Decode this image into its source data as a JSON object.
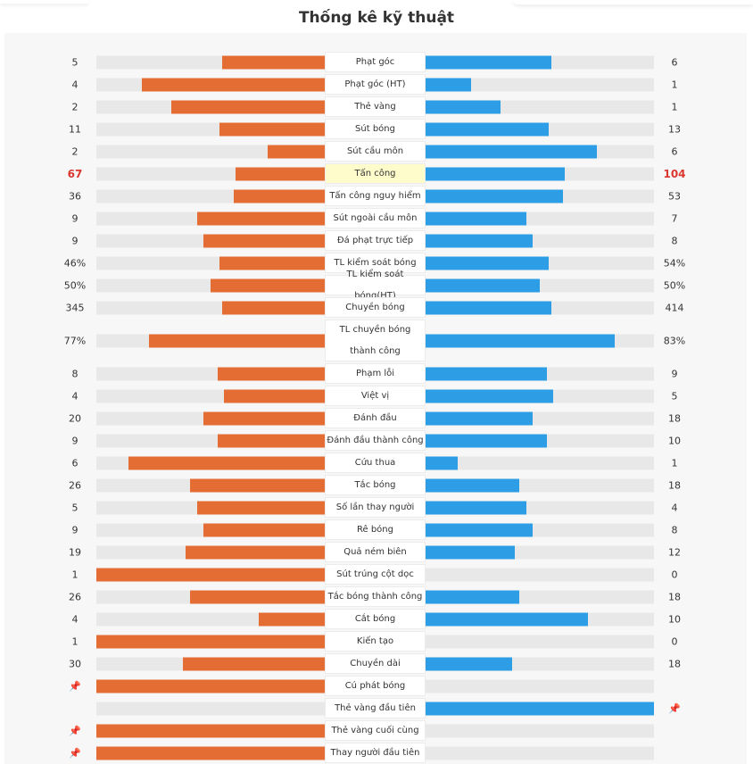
{
  "title": "Thống kê kỹ thuật",
  "colors": {
    "home": "#e36d33",
    "away": "#2d9de6",
    "highlight": "#d9372f",
    "highlight_bg": "#fffccc"
  },
  "chart_data": {
    "type": "bar",
    "title": "Thống kê kỹ thuật",
    "series": [
      {
        "name": "home"
      },
      {
        "name": "away"
      }
    ],
    "rows": [
      {
        "label": "Phạt góc",
        "home": "5",
        "away": "6",
        "home_ratio": 0.45,
        "away_ratio": 0.55
      },
      {
        "label": "Phạt góc (HT)",
        "home": "4",
        "away": "1",
        "home_ratio": 0.8,
        "away_ratio": 0.2
      },
      {
        "label": "Thẻ vàng",
        "home": "2",
        "away": "1",
        "home_ratio": 0.67,
        "away_ratio": 0.33
      },
      {
        "label": "Sút bóng",
        "home": "11",
        "away": "13",
        "home_ratio": 0.46,
        "away_ratio": 0.54
      },
      {
        "label": "Sút cầu môn",
        "home": "2",
        "away": "6",
        "home_ratio": 0.25,
        "away_ratio": 0.75
      },
      {
        "label": "Tấn công",
        "home": "67",
        "away": "104",
        "home_ratio": 0.39,
        "away_ratio": 0.61,
        "highlight": true
      },
      {
        "label": "Tấn công nguy hiểm",
        "home": "36",
        "away": "53",
        "home_ratio": 0.4,
        "away_ratio": 0.6
      },
      {
        "label": "Sút ngoài cầu môn",
        "home": "9",
        "away": "7",
        "home_ratio": 0.56,
        "away_ratio": 0.44
      },
      {
        "label": "Đá phạt trực tiếp",
        "home": "9",
        "away": "8",
        "home_ratio": 0.53,
        "away_ratio": 0.47
      },
      {
        "label": "TL kiểm soát bóng",
        "home": "46%",
        "away": "54%",
        "home_ratio": 0.46,
        "away_ratio": 0.54
      },
      {
        "label": "TL kiểm soát bóng(HT)",
        "home": "50%",
        "away": "50%",
        "home_ratio": 0.5,
        "away_ratio": 0.5
      },
      {
        "label": "Chuyền bóng",
        "home": "345",
        "away": "414",
        "home_ratio": 0.45,
        "away_ratio": 0.55
      },
      {
        "label": "TL chuyền bóng thành công",
        "home": "77%",
        "away": "83%",
        "home_ratio": 0.77,
        "away_ratio": 0.83,
        "tall": true
      },
      {
        "label": "Phạm lỗi",
        "home": "8",
        "away": "9",
        "home_ratio": 0.47,
        "away_ratio": 0.53
      },
      {
        "label": "Việt vị",
        "home": "4",
        "away": "5",
        "home_ratio": 0.44,
        "away_ratio": 0.56
      },
      {
        "label": "Đánh đầu",
        "home": "20",
        "away": "18",
        "home_ratio": 0.53,
        "away_ratio": 0.47
      },
      {
        "label": "Đánh đầu thành công",
        "home": "9",
        "away": "10",
        "home_ratio": 0.47,
        "away_ratio": 0.53
      },
      {
        "label": "Cứu thua",
        "home": "6",
        "away": "1",
        "home_ratio": 0.86,
        "away_ratio": 0.14
      },
      {
        "label": "Tắc bóng",
        "home": "26",
        "away": "18",
        "home_ratio": 0.59,
        "away_ratio": 0.41
      },
      {
        "label": "Số lần thay người",
        "home": "5",
        "away": "4",
        "home_ratio": 0.56,
        "away_ratio": 0.44
      },
      {
        "label": "Rê bóng",
        "home": "9",
        "away": "8",
        "home_ratio": 0.53,
        "away_ratio": 0.47
      },
      {
        "label": "Quả ném biên",
        "home": "19",
        "away": "12",
        "home_ratio": 0.61,
        "away_ratio": 0.39
      },
      {
        "label": "Sút trúng cột dọc",
        "home": "1",
        "away": "0",
        "home_ratio": 1.0,
        "away_ratio": 0.0
      },
      {
        "label": "Tắc bóng thành công",
        "home": "26",
        "away": "18",
        "home_ratio": 0.59,
        "away_ratio": 0.41
      },
      {
        "label": "Cắt bóng",
        "home": "4",
        "away": "10",
        "home_ratio": 0.29,
        "away_ratio": 0.71
      },
      {
        "label": "Kiến tạo",
        "home": "1",
        "away": "0",
        "home_ratio": 1.0,
        "away_ratio": 0.0
      },
      {
        "label": "Chuyền dài",
        "home": "30",
        "away": "18",
        "home_ratio": 0.62,
        "away_ratio": 0.38
      },
      {
        "label": "Cú phát bóng",
        "home": "",
        "away": "",
        "home_ratio": 1.0,
        "away_ratio": 0.0,
        "home_pin": true
      },
      {
        "label": "Thẻ vàng đầu tiên",
        "home": "",
        "away": "",
        "home_ratio": 0.0,
        "away_ratio": 1.0,
        "away_pin": true
      },
      {
        "label": "Thẻ vàng cuối cùng",
        "home": "",
        "away": "",
        "home_ratio": 1.0,
        "away_ratio": 0.0,
        "home_pin": true
      },
      {
        "label": "Thay người đầu tiên",
        "home": "",
        "away": "",
        "home_ratio": 1.0,
        "away_ratio": 0.0,
        "home_pin": true
      }
    ]
  }
}
